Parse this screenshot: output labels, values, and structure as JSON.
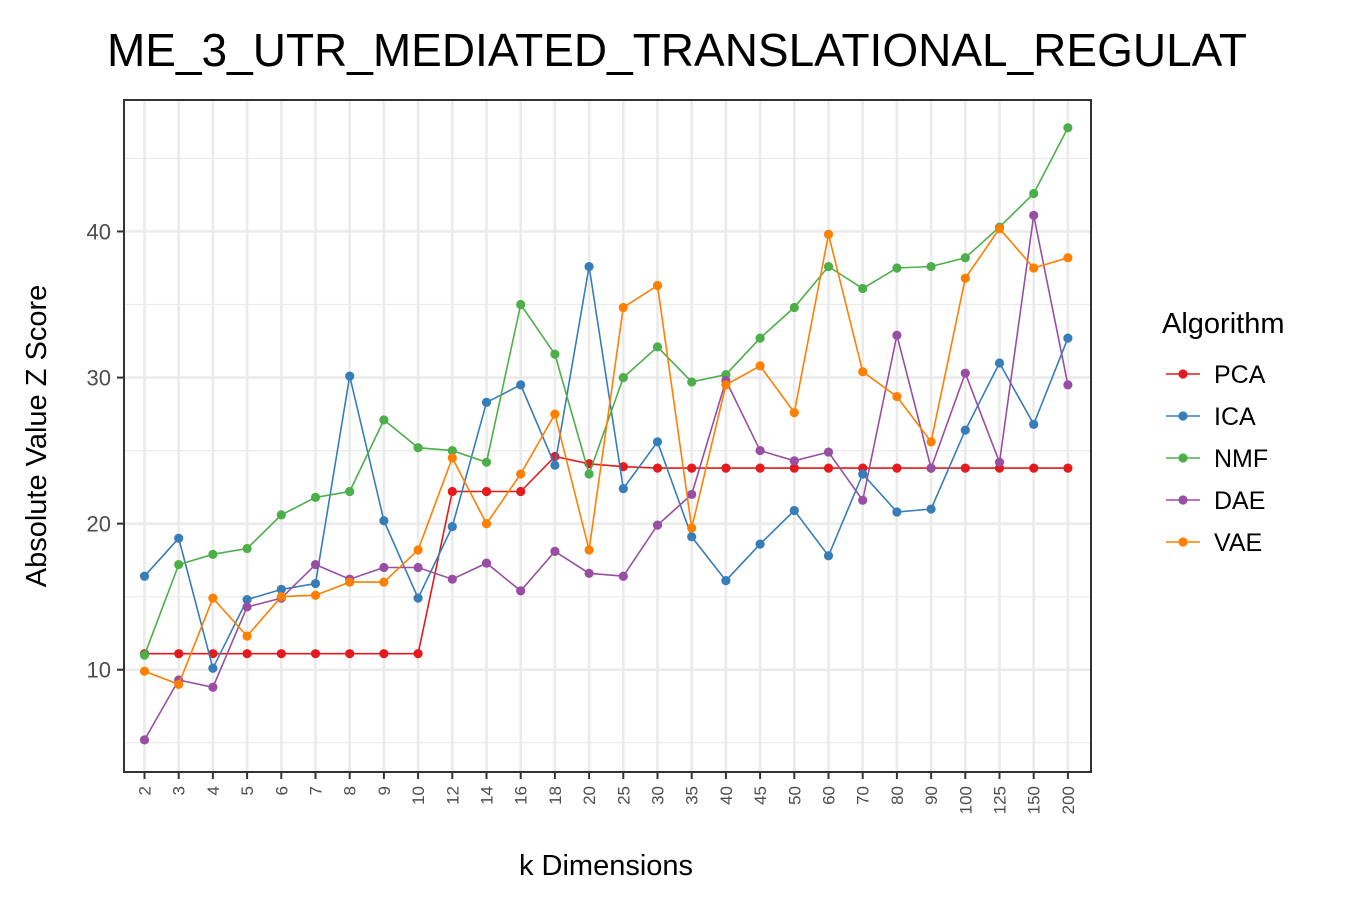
{
  "chart_data": {
    "type": "line",
    "title": "ME_3_UTR_MEDIATED_TRANSLATIONAL_REGULAT",
    "xlabel": "k Dimensions",
    "ylabel": "Absolute Value Z Score",
    "categories": [
      "2",
      "3",
      "4",
      "5",
      "6",
      "7",
      "8",
      "9",
      "10",
      "12",
      "14",
      "16",
      "18",
      "20",
      "25",
      "30",
      "35",
      "40",
      "45",
      "50",
      "60",
      "70",
      "80",
      "90",
      "100",
      "125",
      "150",
      "200"
    ],
    "y_ticks": [
      10,
      20,
      30,
      40
    ],
    "ylim": [
      3,
      49
    ],
    "grid": true,
    "legend": {
      "title": "Algorithm",
      "position": "right"
    },
    "series": [
      {
        "name": "PCA",
        "color": "#e41a1c",
        "values": [
          11.1,
          11.1,
          11.1,
          11.1,
          11.1,
          11.1,
          11.1,
          11.1,
          11.1,
          22.2,
          22.2,
          22.2,
          24.6,
          24.1,
          23.9,
          23.8,
          23.8,
          23.8,
          23.8,
          23.8,
          23.8,
          23.8,
          23.8,
          23.8,
          23.8,
          23.8,
          23.8,
          23.8
        ]
      },
      {
        "name": "ICA",
        "color": "#377eb8",
        "values": [
          16.4,
          19.0,
          10.1,
          14.8,
          15.5,
          15.9,
          30.1,
          20.2,
          14.9,
          19.8,
          28.3,
          29.5,
          24.0,
          37.6,
          22.4,
          25.6,
          19.1,
          16.1,
          18.6,
          20.9,
          17.8,
          23.4,
          20.8,
          21.0,
          26.4,
          31.0,
          26.8,
          32.7
        ]
      },
      {
        "name": "NMF",
        "color": "#4daf4a",
        "values": [
          11.0,
          17.2,
          17.9,
          18.3,
          20.6,
          21.8,
          22.2,
          27.1,
          25.2,
          25.0,
          24.2,
          35.0,
          31.6,
          23.4,
          30.0,
          32.1,
          29.7,
          30.2,
          32.7,
          34.8,
          37.6,
          36.1,
          37.5,
          37.6,
          38.2,
          40.3,
          42.6,
          47.1
        ]
      },
      {
        "name": "DAE",
        "color": "#984ea3",
        "values": [
          5.2,
          9.3,
          8.8,
          14.3,
          14.9,
          17.2,
          16.2,
          17.0,
          17.0,
          16.2,
          17.3,
          15.4,
          18.1,
          16.6,
          16.4,
          19.9,
          22.0,
          29.8,
          25.0,
          24.3,
          24.9,
          21.6,
          32.9,
          23.8,
          30.3,
          24.2,
          41.1,
          29.5
        ]
      },
      {
        "name": "VAE",
        "color": "#ff7f00",
        "values": [
          9.9,
          9.0,
          14.9,
          12.3,
          15.0,
          15.1,
          16.0,
          16.0,
          18.2,
          24.5,
          20.0,
          23.4,
          27.5,
          18.2,
          34.8,
          36.3,
          19.7,
          29.5,
          30.8,
          27.6,
          39.8,
          30.4,
          28.7,
          25.6,
          36.8,
          40.2,
          37.5,
          38.2
        ]
      }
    ]
  }
}
